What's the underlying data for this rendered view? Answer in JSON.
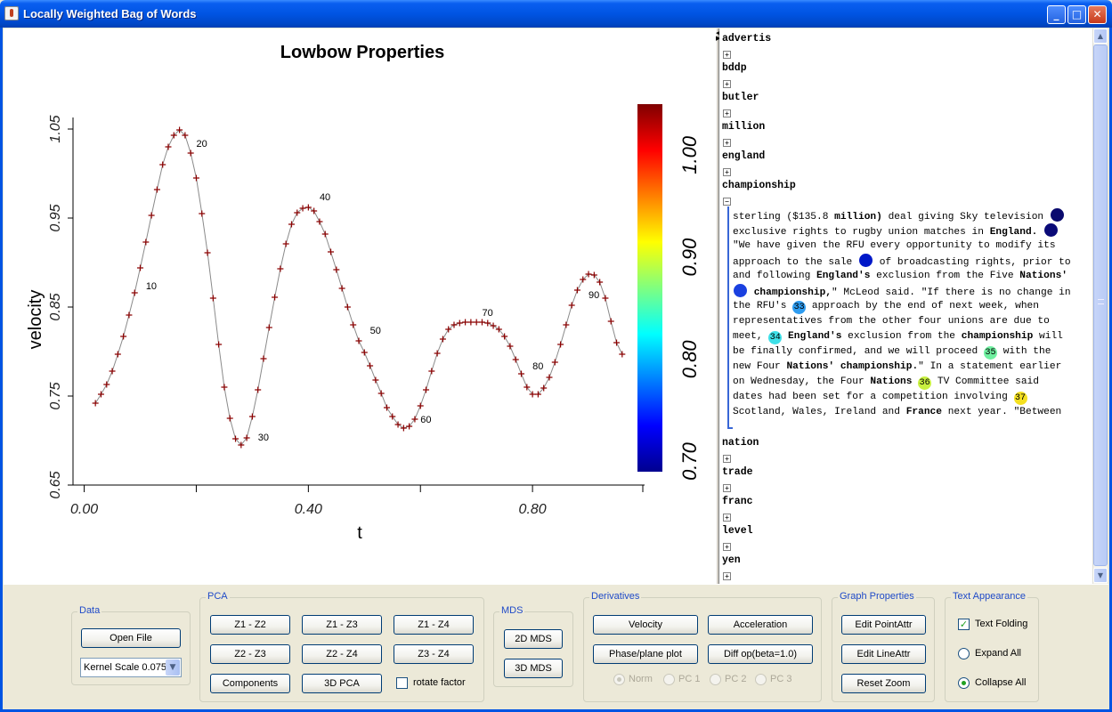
{
  "window": {
    "title": "Locally Weighted Bag of Words"
  },
  "chart_data": {
    "type": "scatter",
    "title": "Lowbow Properties",
    "xlabel": "t",
    "ylabel": "velocity",
    "xlim": [
      -0.02,
      1.0
    ],
    "ylim": [
      0.65,
      1.05
    ],
    "xticks": [
      "0.00",
      "0.40",
      "0.80"
    ],
    "xtick_values": [
      0.0,
      0.4,
      0.8
    ],
    "yticks": [
      "0.65",
      "0.75",
      "0.85",
      "0.95",
      "1.05"
    ],
    "ytick_values": [
      0.65,
      0.75,
      0.85,
      0.95,
      1.05
    ],
    "marker_color": "#8b0000",
    "line_color": "#8a8a8a",
    "series": [
      {
        "x": [
          0.02,
          0.03,
          0.04,
          0.05,
          0.06,
          0.07,
          0.08,
          0.09,
          0.1,
          0.11,
          0.12,
          0.13,
          0.14,
          0.15,
          0.16,
          0.17,
          0.18,
          0.19,
          0.2,
          0.21,
          0.22,
          0.23,
          0.24,
          0.25,
          0.26,
          0.27,
          0.28,
          0.29,
          0.3,
          0.31,
          0.32,
          0.33,
          0.34,
          0.35,
          0.36,
          0.37,
          0.38,
          0.39,
          0.4,
          0.41,
          0.42,
          0.43,
          0.44,
          0.45,
          0.46,
          0.47,
          0.48,
          0.49,
          0.5,
          0.51,
          0.52,
          0.53,
          0.54,
          0.55,
          0.56,
          0.57,
          0.58,
          0.59,
          0.6,
          0.61,
          0.62,
          0.63,
          0.64,
          0.65,
          0.66,
          0.67,
          0.68,
          0.69,
          0.7,
          0.71,
          0.72,
          0.73,
          0.74,
          0.75,
          0.76,
          0.77,
          0.78,
          0.79,
          0.8,
          0.81,
          0.82,
          0.83,
          0.84,
          0.85,
          0.86,
          0.87,
          0.88,
          0.89,
          0.9,
          0.91,
          0.92,
          0.93,
          0.94,
          0.95,
          0.96
        ],
        "y": [
          0.742,
          0.752,
          0.763,
          0.778,
          0.797,
          0.817,
          0.841,
          0.866,
          0.894,
          0.923,
          0.953,
          0.982,
          1.01,
          1.03,
          1.043,
          1.049,
          1.043,
          1.023,
          0.995,
          0.955,
          0.911,
          0.86,
          0.808,
          0.76,
          0.725,
          0.702,
          0.695,
          0.703,
          0.727,
          0.757,
          0.792,
          0.827,
          0.861,
          0.893,
          0.921,
          0.943,
          0.956,
          0.961,
          0.962,
          0.958,
          0.946,
          0.932,
          0.912,
          0.892,
          0.871,
          0.85,
          0.83,
          0.812,
          0.799,
          0.784,
          0.768,
          0.753,
          0.737,
          0.727,
          0.718,
          0.714,
          0.716,
          0.724,
          0.739,
          0.757,
          0.778,
          0.798,
          0.814,
          0.825,
          0.83,
          0.832,
          0.833,
          0.833,
          0.833,
          0.833,
          0.832,
          0.829,
          0.825,
          0.817,
          0.806,
          0.791,
          0.775,
          0.76,
          0.752,
          0.752,
          0.759,
          0.771,
          0.788,
          0.808,
          0.83,
          0.852,
          0.869,
          0.881,
          0.887,
          0.886,
          0.878,
          0.86,
          0.834,
          0.81,
          0.797
        ]
      }
    ],
    "point_labels": [
      {
        "x": 0.11,
        "y": 0.87,
        "text": "10"
      },
      {
        "x": 0.2,
        "y": 1.03,
        "text": "20"
      },
      {
        "x": 0.31,
        "y": 0.7,
        "text": "30"
      },
      {
        "x": 0.42,
        "y": 0.97,
        "text": "40"
      },
      {
        "x": 0.51,
        "y": 0.82,
        "text": "50"
      },
      {
        "x": 0.6,
        "y": 0.72,
        "text": "60"
      },
      {
        "x": 0.71,
        "y": 0.84,
        "text": "70"
      },
      {
        "x": 0.8,
        "y": 0.78,
        "text": "80"
      },
      {
        "x": 0.9,
        "y": 0.86,
        "text": "90"
      }
    ],
    "colorbar": {
      "ticks": [
        "0.70",
        "0.80",
        "0.90",
        "1.00"
      ],
      "tick_values": [
        0.7,
        0.8,
        0.9,
        1.0
      ],
      "range": [
        0.69,
        1.05
      ]
    },
    "grid": false
  },
  "text_view": {
    "words_top": [
      {
        "word": "advertis",
        "toggle": "+"
      },
      {
        "word": "bddp",
        "toggle": "+"
      },
      {
        "word": "butler",
        "toggle": "+"
      },
      {
        "word": "million",
        "toggle": "+"
      },
      {
        "word": "england",
        "toggle": "+"
      },
      {
        "word": "championship",
        "toggle": "−"
      }
    ],
    "words_bottom": [
      {
        "word": "nation",
        "toggle": "+"
      },
      {
        "word": "trade",
        "toggle": "+"
      },
      {
        "word": "franc",
        "toggle": "+"
      },
      {
        "word": "level",
        "toggle": "+"
      },
      {
        "word": "yen",
        "toggle": "+"
      }
    ],
    "excerpt": {
      "l1a": "sterling ($135.8 ",
      "l1b": "million)",
      "l1c": " deal giving Sky television ",
      "l2a": "exclusive rights to rugby union matches in ",
      "l2b": "England.",
      "l3": "\"We have given the RFU every opportunity to modify its",
      "l4a": "approach to the sale ",
      "l4b": " of broadcasting rights, prior to",
      "l5a": "and following ",
      "l5b": "England's",
      "l5c": " exclusion from the Five ",
      "l5d": "Nations'",
      "l6a": " ",
      "l6b": "championship,",
      "l6c": "\" McLeod said. \"If there is no change in",
      "l7a": "the RFU's ",
      "l7n": "33",
      "l7b": " approach by the end of next week, when",
      "l8": "representatives from the other four unions are due to",
      "l9a": "meet, ",
      "l9n": "34",
      "l9b": " ",
      "l9c": "England's",
      "l9d": " exclusion from the ",
      "l9e": "championship",
      "l9f": " will",
      "l10a": "be finally confirmed, and we will proceed ",
      "l10n": "35",
      "l10b": " with the",
      "l11a": "new Four ",
      "l11b": "Nations'",
      "l11c": " ",
      "l11d": "championship.",
      "l11e": "\" In a statement earlier",
      "l12a": "on Wednesday, the Four ",
      "l12b": "Nations",
      "l12c": " ",
      "l12n": "36",
      "l12d": " TV Committee said",
      "l13a": "dates had been set for a competition involving ",
      "l13n": "37",
      "l14a": "Scotland, Wales, Ireland and ",
      "l14b": "France",
      "l14c": " next year. \"Between"
    }
  },
  "controls": {
    "data": {
      "title": "Data",
      "open_file": "Open File",
      "kernel_scale": "Kernel Scale 0.075"
    },
    "pca": {
      "title": "PCA",
      "z1z2": "Z1 - Z2",
      "z1z3": "Z1 - Z3",
      "z1z4": "Z1 - Z4",
      "z2z3": "Z2 - Z3",
      "z2z4": "Z2 - Z4",
      "z3z4": "Z3 - Z4",
      "components": "Components",
      "pca3d": "3D PCA",
      "rotate": "rotate factor"
    },
    "mds": {
      "title": "MDS",
      "mds2d": "2D MDS",
      "mds3d": "3D MDS"
    },
    "derivatives": {
      "title": "Derivatives",
      "velocity": "Velocity",
      "acceleration": "Acceleration",
      "phase": "Phase/plane plot",
      "diffop": "Diff op(beta=1.0)",
      "norm": "Norm",
      "pc1": "PC 1",
      "pc2": "PC 2",
      "pc3": "PC 3"
    },
    "graph": {
      "title": "Graph Properties",
      "point": "Edit PointAttr",
      "line": "Edit LineAttr",
      "reset": "Reset Zoom"
    },
    "text": {
      "title": "Text Appearance",
      "folding": "Text Folding",
      "expand": "Expand All",
      "collapse": "Collapse All"
    }
  }
}
